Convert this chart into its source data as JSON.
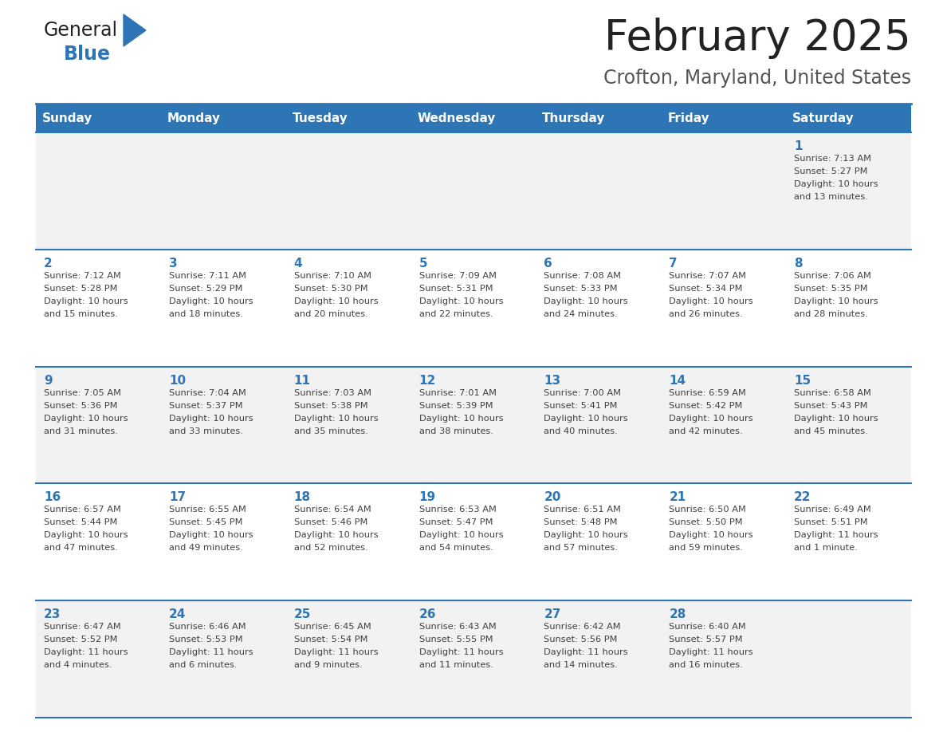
{
  "title": "February 2025",
  "subtitle": "Crofton, Maryland, United States",
  "header_bg": "#2E75B6",
  "header_text_color": "#FFFFFF",
  "day_names": [
    "Sunday",
    "Monday",
    "Tuesday",
    "Wednesday",
    "Thursday",
    "Friday",
    "Saturday"
  ],
  "cell_bg_odd": "#F2F2F2",
  "cell_bg_even": "#FFFFFF",
  "cell_border_color": "#2E75B6",
  "day_num_color": "#2E75B6",
  "info_text_color": "#404040",
  "title_color": "#222222",
  "subtitle_color": "#555555",
  "logo_general_color": "#222222",
  "logo_blue_color": "#2E75B6",
  "weeks": [
    [
      null,
      null,
      null,
      null,
      null,
      null,
      {
        "day": 1,
        "sunrise": "7:13 AM",
        "sunset": "5:27 PM",
        "daylight": "10 hours\nand 13 minutes."
      }
    ],
    [
      {
        "day": 2,
        "sunrise": "7:12 AM",
        "sunset": "5:28 PM",
        "daylight": "10 hours\nand 15 minutes."
      },
      {
        "day": 3,
        "sunrise": "7:11 AM",
        "sunset": "5:29 PM",
        "daylight": "10 hours\nand 18 minutes."
      },
      {
        "day": 4,
        "sunrise": "7:10 AM",
        "sunset": "5:30 PM",
        "daylight": "10 hours\nand 20 minutes."
      },
      {
        "day": 5,
        "sunrise": "7:09 AM",
        "sunset": "5:31 PM",
        "daylight": "10 hours\nand 22 minutes."
      },
      {
        "day": 6,
        "sunrise": "7:08 AM",
        "sunset": "5:33 PM",
        "daylight": "10 hours\nand 24 minutes."
      },
      {
        "day": 7,
        "sunrise": "7:07 AM",
        "sunset": "5:34 PM",
        "daylight": "10 hours\nand 26 minutes."
      },
      {
        "day": 8,
        "sunrise": "7:06 AM",
        "sunset": "5:35 PM",
        "daylight": "10 hours\nand 28 minutes."
      }
    ],
    [
      {
        "day": 9,
        "sunrise": "7:05 AM",
        "sunset": "5:36 PM",
        "daylight": "10 hours\nand 31 minutes."
      },
      {
        "day": 10,
        "sunrise": "7:04 AM",
        "sunset": "5:37 PM",
        "daylight": "10 hours\nand 33 minutes."
      },
      {
        "day": 11,
        "sunrise": "7:03 AM",
        "sunset": "5:38 PM",
        "daylight": "10 hours\nand 35 minutes."
      },
      {
        "day": 12,
        "sunrise": "7:01 AM",
        "sunset": "5:39 PM",
        "daylight": "10 hours\nand 38 minutes."
      },
      {
        "day": 13,
        "sunrise": "7:00 AM",
        "sunset": "5:41 PM",
        "daylight": "10 hours\nand 40 minutes."
      },
      {
        "day": 14,
        "sunrise": "6:59 AM",
        "sunset": "5:42 PM",
        "daylight": "10 hours\nand 42 minutes."
      },
      {
        "day": 15,
        "sunrise": "6:58 AM",
        "sunset": "5:43 PM",
        "daylight": "10 hours\nand 45 minutes."
      }
    ],
    [
      {
        "day": 16,
        "sunrise": "6:57 AM",
        "sunset": "5:44 PM",
        "daylight": "10 hours\nand 47 minutes."
      },
      {
        "day": 17,
        "sunrise": "6:55 AM",
        "sunset": "5:45 PM",
        "daylight": "10 hours\nand 49 minutes."
      },
      {
        "day": 18,
        "sunrise": "6:54 AM",
        "sunset": "5:46 PM",
        "daylight": "10 hours\nand 52 minutes."
      },
      {
        "day": 19,
        "sunrise": "6:53 AM",
        "sunset": "5:47 PM",
        "daylight": "10 hours\nand 54 minutes."
      },
      {
        "day": 20,
        "sunrise": "6:51 AM",
        "sunset": "5:48 PM",
        "daylight": "10 hours\nand 57 minutes."
      },
      {
        "day": 21,
        "sunrise": "6:50 AM",
        "sunset": "5:50 PM",
        "daylight": "10 hours\nand 59 minutes."
      },
      {
        "day": 22,
        "sunrise": "6:49 AM",
        "sunset": "5:51 PM",
        "daylight": "11 hours\nand 1 minute."
      }
    ],
    [
      {
        "day": 23,
        "sunrise": "6:47 AM",
        "sunset": "5:52 PM",
        "daylight": "11 hours\nand 4 minutes."
      },
      {
        "day": 24,
        "sunrise": "6:46 AM",
        "sunset": "5:53 PM",
        "daylight": "11 hours\nand 6 minutes."
      },
      {
        "day": 25,
        "sunrise": "6:45 AM",
        "sunset": "5:54 PM",
        "daylight": "11 hours\nand 9 minutes."
      },
      {
        "day": 26,
        "sunrise": "6:43 AM",
        "sunset": "5:55 PM",
        "daylight": "11 hours\nand 11 minutes."
      },
      {
        "day": 27,
        "sunrise": "6:42 AM",
        "sunset": "5:56 PM",
        "daylight": "11 hours\nand 14 minutes."
      },
      {
        "day": 28,
        "sunrise": "6:40 AM",
        "sunset": "5:57 PM",
        "daylight": "11 hours\nand 16 minutes."
      },
      null
    ]
  ]
}
